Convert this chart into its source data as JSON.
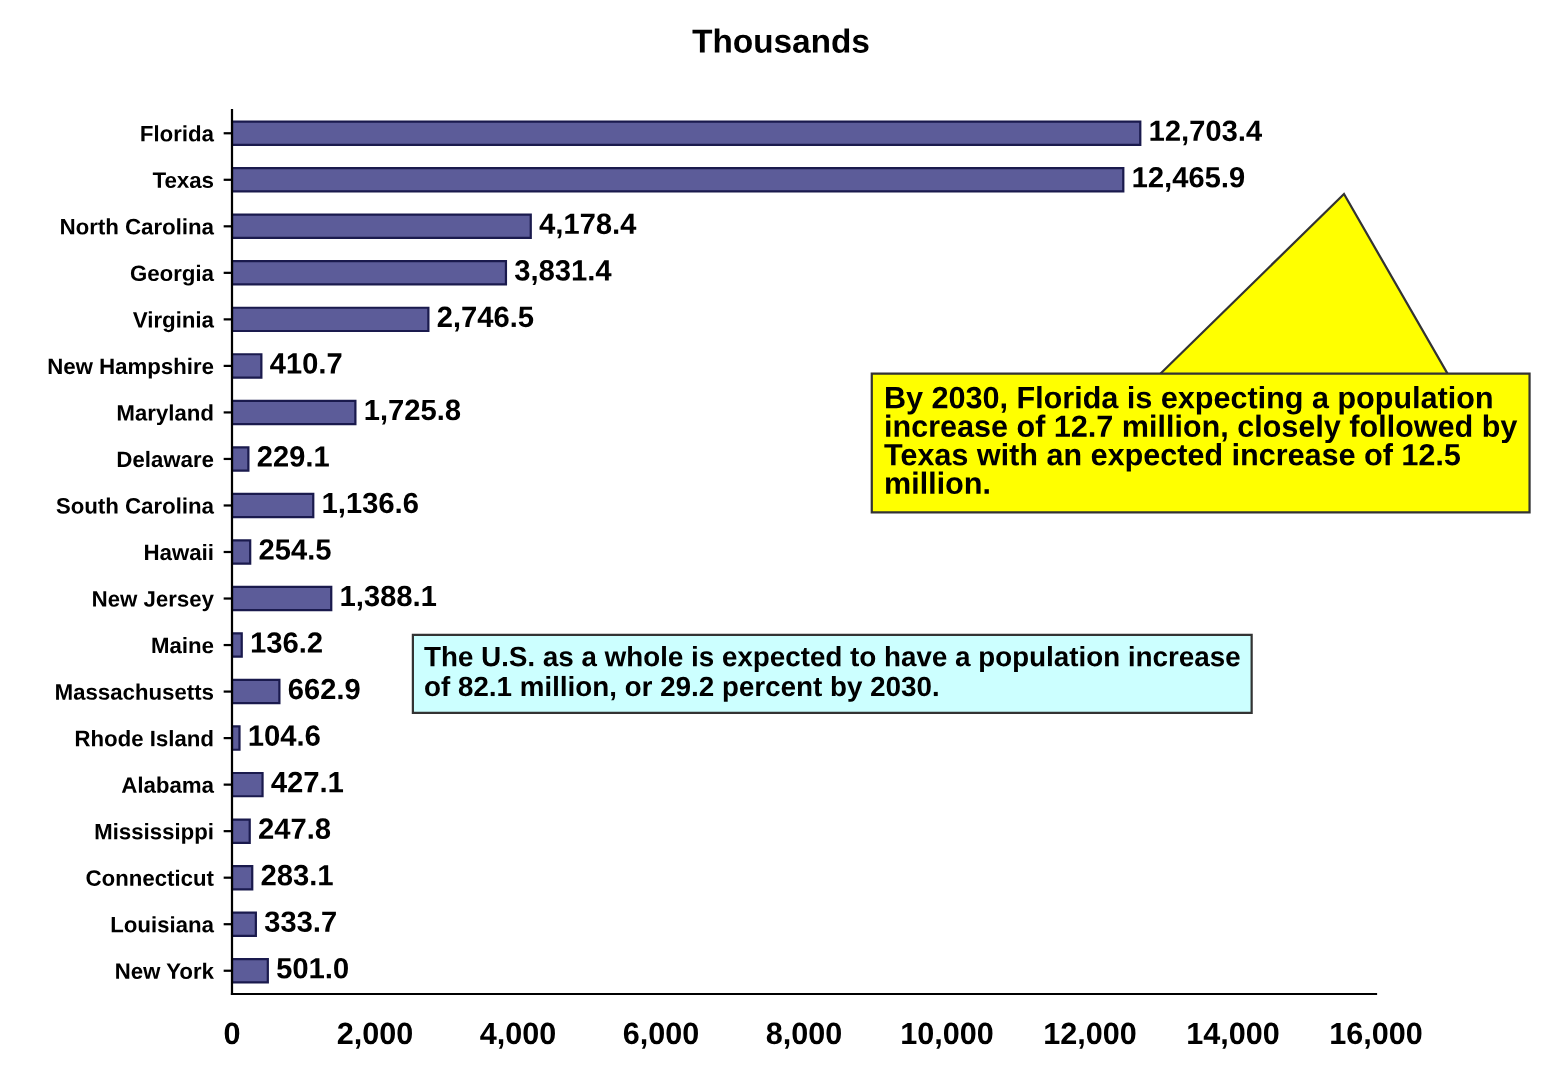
{
  "chart_data": {
    "type": "bar",
    "orientation": "horizontal",
    "title": "Thousands",
    "categories": [
      "Florida",
      "Texas",
      "North Carolina",
      "Georgia",
      "Virginia",
      "New Hampshire",
      "Maryland",
      "Delaware",
      "South Carolina",
      "Hawaii",
      "New Jersey",
      "Maine",
      "Massachusetts",
      "Rhode Island",
      "Alabama",
      "Mississippi",
      "Connecticut",
      "Louisiana",
      "New York"
    ],
    "values": [
      12703.4,
      12465.9,
      4178.4,
      3831.4,
      2746.5,
      410.7,
      1725.8,
      229.1,
      1136.6,
      254.5,
      1388.1,
      136.2,
      662.9,
      104.6,
      427.1,
      247.8,
      283.1,
      333.7,
      501.0
    ],
    "value_labels": [
      "12,703.4",
      "12,465.9",
      "4,178.4",
      "3,831.4",
      "2,746.5",
      "410.7",
      "1,725.8",
      "229.1",
      "1,136.6",
      "254.5",
      "1,388.1",
      "136.2",
      "662.9",
      "104.6",
      "427.1",
      "247.8",
      "283.1",
      "333.7",
      "501.0"
    ],
    "color": "#5c5c99",
    "xlim": [
      0,
      16000
    ],
    "xticks": [
      {
        "value": 0,
        "label": "0"
      },
      {
        "value": 2000,
        "label": "2,000"
      },
      {
        "value": 4000,
        "label": "4,000"
      },
      {
        "value": 6000,
        "label": "6,000"
      },
      {
        "value": 8000,
        "label": "8,000"
      },
      {
        "value": 10000,
        "label": "10,000"
      },
      {
        "value": 12000,
        "label": "12,000"
      },
      {
        "value": 14000,
        "label": "14,000"
      },
      {
        "value": 16000,
        "label": "16,000"
      }
    ],
    "grid": false,
    "legend": false,
    "annotations": [
      "By 2030, Florida is expecting a population increase of 12.7 million, closely followed by Texas with an expected increase of 12.5 million.",
      "The U.S. as a whole is expected to have a population increase of 82.1 million, or 29.2 percent by 2030."
    ]
  }
}
